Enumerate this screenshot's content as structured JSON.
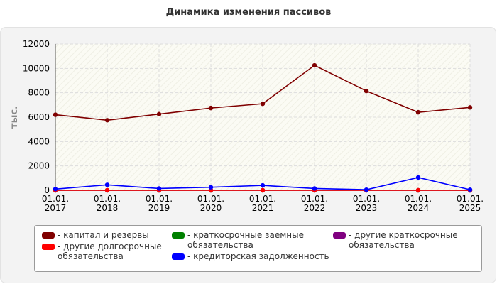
{
  "title": "Динамика изменения пассивов",
  "chart_data": {
    "type": "line",
    "ylabel": "тыс.",
    "ylim": [
      0,
      12000
    ],
    "yticks": [
      "0",
      "2000",
      "4000",
      "6000",
      "8000",
      "10000",
      "12000"
    ],
    "categories": [
      "01.01.\n2017",
      "01.01.\n2018",
      "01.01.\n2019",
      "01.01.\n2020",
      "01.01.\n2021",
      "01.01.\n2022",
      "01.01.\n2023",
      "01.01.\n2024",
      "01.01.\n2025"
    ],
    "grid": true,
    "legend_position": "bottom",
    "series": [
      {
        "name": "- капитал и резервы",
        "color": "#800000",
        "values": [
          6200,
          5750,
          6250,
          6750,
          7100,
          10250,
          8150,
          6400,
          6800
        ]
      },
      {
        "name": "- краткосрочные заемные обязательства",
        "color": "#008000",
        "values": [
          0,
          0,
          0,
          0,
          0,
          0,
          0,
          0,
          0
        ]
      },
      {
        "name": "- другие краткосрочные обязательства",
        "color": "#800080",
        "values": [
          0,
          0,
          0,
          0,
          0,
          0,
          0,
          0,
          0
        ]
      },
      {
        "name": "- другие долгосрочные обязательства",
        "color": "#ff0000",
        "values": [
          0,
          0,
          0,
          0,
          0,
          0,
          0,
          0,
          0
        ]
      },
      {
        "name": "- кредиторская задолженность",
        "color": "#0000ff",
        "values": [
          100,
          450,
          150,
          250,
          400,
          150,
          50,
          1050,
          50
        ]
      }
    ]
  },
  "legend": [
    {
      "label": "- капитал и резервы",
      "color": "#800000"
    },
    {
      "label": "- краткосрочные заемные обязательства",
      "color": "#008000"
    },
    {
      "label": "- другие краткосрочные обязательства",
      "color": "#800080"
    },
    {
      "label": "- другие долгосрочные обязательства",
      "color": "#ff0000"
    },
    {
      "label": "- кредиторская задолженность",
      "color": "#0000ff"
    }
  ]
}
